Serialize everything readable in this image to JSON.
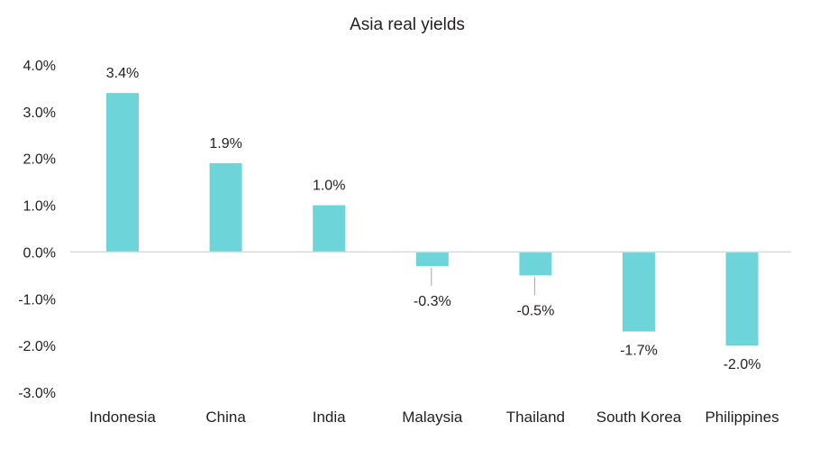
{
  "chart_data": {
    "type": "bar",
    "title": "Asia real yields",
    "categories": [
      "Indonesia",
      "China",
      "India",
      "Malaysia",
      "Thailand",
      "South Korea",
      "Philippines"
    ],
    "values": [
      3.4,
      1.9,
      1.0,
      -0.3,
      -0.5,
      -1.7,
      -2.0
    ],
    "data_labels": [
      "3.4%",
      "1.9%",
      "1.0%",
      "-0.3%",
      "-0.5%",
      "-1.7%",
      "-2.0%"
    ],
    "y_ticks": [
      4.0,
      3.0,
      2.0,
      1.0,
      0.0,
      -1.0,
      -2.0,
      -3.0
    ],
    "y_tick_labels": [
      "4.0%",
      "3.0%",
      "2.0%",
      "1.0%",
      "0.0%",
      "-1.0%",
      "-2.0%",
      "-3.0%"
    ],
    "ylim": [
      -3,
      4
    ],
    "xlabel": "",
    "ylabel": "",
    "grid": false,
    "legend": "none",
    "bar_color": "#6dd5d9"
  }
}
